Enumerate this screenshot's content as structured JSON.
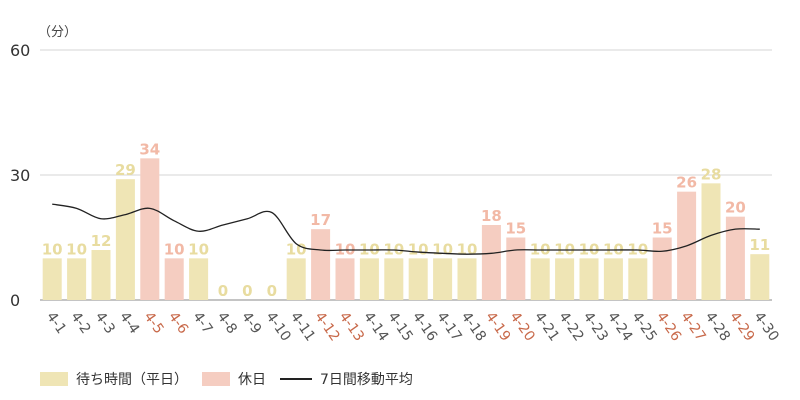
{
  "chart_data": {
    "type": "bar",
    "y_unit_label": "（分）",
    "ylim": [
      0,
      60
    ],
    "yticks": [
      0,
      30,
      60
    ],
    "grid": true,
    "legend_position": "bottom-left",
    "categories": [
      "4-1",
      "4-2",
      "4-3",
      "4-4",
      "4-5",
      "4-6",
      "4-7",
      "4-8",
      "4-9",
      "4-10",
      "4-11",
      "4-12",
      "4-13",
      "4-14",
      "4-15",
      "4-16",
      "4-17",
      "4-18",
      "4-19",
      "4-20",
      "4-21",
      "4-22",
      "4-23",
      "4-24",
      "4-25",
      "4-26",
      "4-27",
      "4-28",
      "4-29",
      "4-30"
    ],
    "values": [
      10,
      10,
      12,
      29,
      34,
      10,
      10,
      0,
      0,
      0,
      10,
      17,
      10,
      10,
      10,
      10,
      10,
      10,
      18,
      15,
      10,
      10,
      10,
      10,
      10,
      15,
      26,
      28,
      20,
      11
    ],
    "holiday": [
      false,
      false,
      false,
      false,
      true,
      true,
      false,
      false,
      false,
      false,
      false,
      true,
      true,
      false,
      false,
      false,
      false,
      false,
      true,
      true,
      false,
      false,
      false,
      false,
      false,
      true,
      true,
      false,
      true,
      false
    ],
    "moving_average": [
      23,
      22,
      19.5,
      20.5,
      22,
      19,
      16.5,
      18,
      19.5,
      21,
      13.5,
      12,
      12,
      12,
      12,
      11.5,
      11.2,
      11,
      11.2,
      12,
      12,
      12,
      12,
      12,
      12,
      11.7,
      13,
      15.5,
      17,
      17
    ],
    "series": [
      {
        "name": "待ち時間（平日）",
        "color": "#efe5b5"
      },
      {
        "name": "休日",
        "color": "#f5cdc1"
      },
      {
        "name": "7日間移動平均",
        "color": "#222222"
      }
    ],
    "label_colors": {
      "weekday_value": "#e8dca0",
      "holiday_value": "#f2b9a6",
      "weekday_tick": "#555555",
      "holiday_tick": "#c8694a"
    }
  }
}
